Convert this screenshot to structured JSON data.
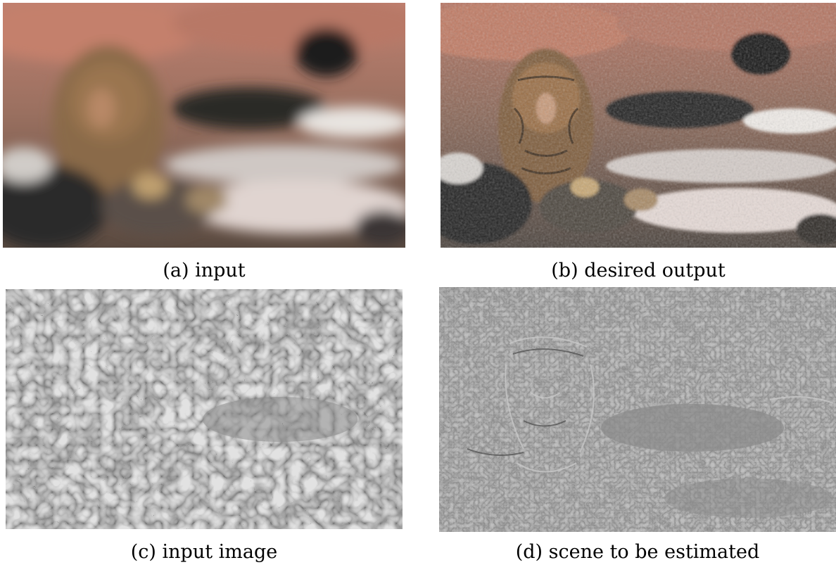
{
  "figure": {
    "panels": [
      {
        "id": "a",
        "caption": "(a) input"
      },
      {
        "id": "b",
        "caption": "(b) desired output"
      },
      {
        "id": "c",
        "caption": "(c) input image"
      },
      {
        "id": "d",
        "caption": "(d) scene to be estimated"
      }
    ]
  },
  "colors": {
    "background": "#ffffff",
    "rock_light": "#d8d0cc",
    "ground_reddish": "#b0705a",
    "tiger_orange": "#a8783c",
    "shadow_dark": "#3a3632",
    "gray_mid": "#8a8a8a"
  }
}
